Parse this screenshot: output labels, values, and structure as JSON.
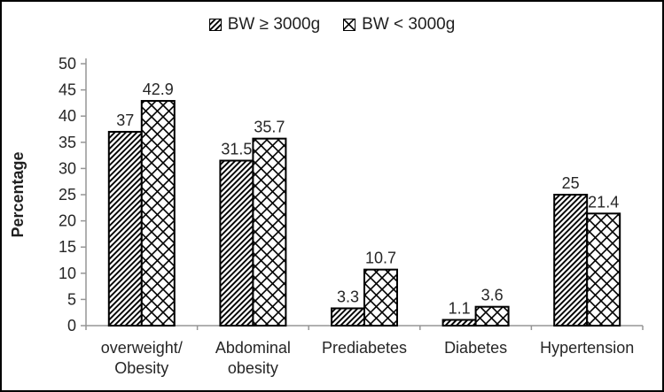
{
  "colors": {
    "text": "#262626",
    "axis": "#969696",
    "bar_stroke": "#000000",
    "background": "#ffffff",
    "frame_border": "#000000"
  },
  "chart_data": {
    "type": "bar",
    "title": "",
    "xlabel": "",
    "ylabel": "Percentage",
    "ylim": [
      0,
      50
    ],
    "ytick_step": 5,
    "grid": false,
    "legend_position": "top-center",
    "categories": [
      [
        "overweight/",
        "Obesity"
      ],
      [
        "Abdominal",
        "obesity"
      ],
      [
        "Prediabetes"
      ],
      [
        "Diabetes"
      ],
      [
        "Hypertension"
      ]
    ],
    "series": [
      {
        "name": "BW ≥ 3000g",
        "pattern": "diagonal-hatch",
        "values": [
          37,
          31.5,
          3.3,
          1.1,
          25
        ]
      },
      {
        "name": "BW < 3000g",
        "pattern": "diamond-crosshatch",
        "values": [
          42.9,
          35.7,
          10.7,
          3.6,
          21.4
        ]
      }
    ]
  }
}
